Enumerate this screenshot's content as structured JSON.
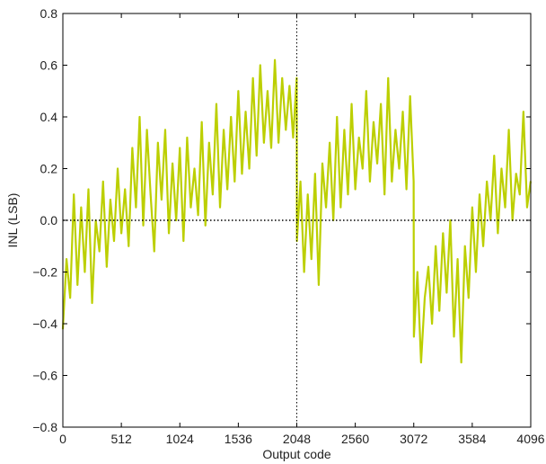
{
  "chart_data": {
    "type": "line",
    "xlabel": "Output code",
    "ylabel": "INL (LSB)",
    "xlim": [
      0,
      4096
    ],
    "ylim": [
      -0.8,
      0.8
    ],
    "x_ticks": [
      0,
      512,
      1024,
      1536,
      2048,
      2560,
      3072,
      3584,
      4096
    ],
    "y_ticks": [
      -0.8,
      -0.6,
      -0.4,
      -0.2,
      0.0,
      0.2,
      0.4,
      0.6,
      0.8
    ],
    "x_tick_labels": [
      "0",
      "512",
      "1024",
      "1536",
      "2048",
      "2560",
      "3072",
      "3584",
      "4096"
    ],
    "y_tick_labels": [
      "−0.8",
      "−0.6",
      "−0.4",
      "−0.2",
      "0.0",
      "0.2",
      "0.4",
      "0.6",
      "0.8"
    ],
    "reference_lines": {
      "horizontal_y": 0.0,
      "vertical_x": 2048,
      "style": "dotted"
    },
    "grid": false,
    "series_color": "#bccf00",
    "series": [
      {
        "x": [
          0,
          32,
          64,
          96,
          128,
          160,
          192,
          224,
          256,
          288,
          320,
          352,
          384,
          416,
          448,
          480,
          512,
          544,
          576,
          608,
          640,
          672,
          704,
          736,
          768,
          800,
          832,
          864,
          896,
          928,
          960,
          992,
          1024,
          1056,
          1088,
          1120,
          1152,
          1184,
          1216,
          1248,
          1280,
          1312,
          1344,
          1376,
          1408,
          1440,
          1472,
          1504,
          1536,
          1568,
          1600,
          1632,
          1664,
          1696,
          1728,
          1760,
          1792,
          1824,
          1856,
          1888,
          1920,
          1952,
          1984,
          2016,
          2047,
          2049,
          2080,
          2112,
          2144,
          2176,
          2208,
          2240,
          2272,
          2304,
          2336,
          2368,
          2400,
          2432,
          2464,
          2496,
          2528,
          2560,
          2592,
          2624,
          2656,
          2688,
          2720,
          2752,
          2784,
          2816,
          2848,
          2880,
          2912,
          2944,
          2976,
          3008,
          3040,
          3071,
          3073,
          3104,
          3136,
          3168,
          3200,
          3232,
          3264,
          3296,
          3328,
          3360,
          3392,
          3424,
          3456,
          3488,
          3520,
          3552,
          3584,
          3616,
          3648,
          3680,
          3712,
          3744,
          3776,
          3808,
          3840,
          3872,
          3904,
          3936,
          3968,
          4000,
          4032,
          4064,
          4095
        ],
        "y": [
          -0.42,
          -0.15,
          -0.3,
          0.1,
          -0.25,
          0.05,
          -0.2,
          0.12,
          -0.32,
          0.0,
          -0.12,
          0.15,
          -0.18,
          0.08,
          -0.08,
          0.2,
          -0.05,
          0.12,
          -0.1,
          0.28,
          0.05,
          0.4,
          -0.02,
          0.35,
          0.1,
          -0.12,
          0.3,
          0.08,
          0.35,
          -0.05,
          0.22,
          0.0,
          0.28,
          -0.08,
          0.32,
          0.05,
          0.2,
          0.02,
          0.38,
          -0.02,
          0.3,
          0.1,
          0.45,
          0.05,
          0.35,
          0.12,
          0.4,
          0.15,
          0.5,
          0.18,
          0.42,
          0.2,
          0.55,
          0.25,
          0.6,
          0.3,
          0.5,
          0.28,
          0.62,
          0.3,
          0.55,
          0.35,
          0.52,
          0.32,
          0.55,
          -0.08,
          0.15,
          -0.2,
          0.1,
          -0.15,
          0.18,
          -0.25,
          0.22,
          0.05,
          0.3,
          0.0,
          0.4,
          0.05,
          0.35,
          0.1,
          0.45,
          0.12,
          0.32,
          0.2,
          0.5,
          0.15,
          0.38,
          0.22,
          0.45,
          0.1,
          0.55,
          0.15,
          0.35,
          0.2,
          0.42,
          0.12,
          0.48,
          0.15,
          -0.45,
          -0.2,
          -0.55,
          -0.3,
          -0.18,
          -0.4,
          -0.1,
          -0.35,
          -0.05,
          -0.28,
          0.0,
          -0.45,
          -0.15,
          -0.55,
          -0.1,
          -0.3,
          0.05,
          -0.2,
          0.1,
          -0.1,
          0.15,
          0.0,
          0.25,
          -0.05,
          0.2,
          0.05,
          0.35,
          0.0,
          0.18,
          0.1,
          0.42,
          0.05,
          0.15
        ]
      }
    ]
  }
}
